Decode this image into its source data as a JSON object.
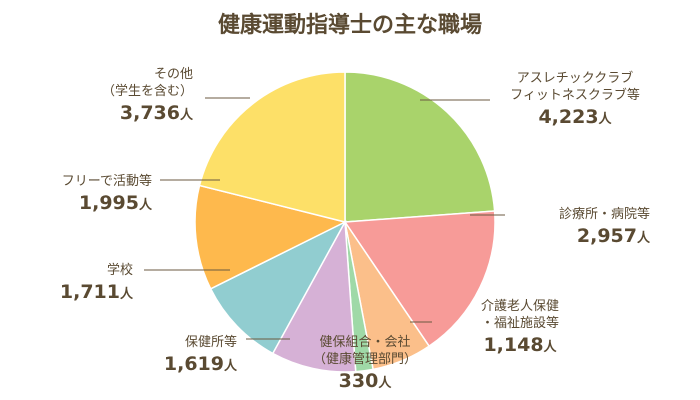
{
  "chart_data": {
    "type": "pie",
    "title": "健康運動指導士の主な職場",
    "unit": "人",
    "start_angle_deg": 0,
    "direction": "clockwise",
    "slices": [
      {
        "label_lines": [
          "アスレチッククラブ",
          "フィットネスクラブ等"
        ],
        "value": 4223,
        "value_text": "4,223",
        "color": "#a9d36b"
      },
      {
        "label_lines": [
          "診療所・病院等"
        ],
        "value": 2957,
        "value_text": "2,957",
        "color": "#f79b98"
      },
      {
        "label_lines": [
          "介護老人保健",
          "・福祉施設等"
        ],
        "value": 1148,
        "value_text": "1,148",
        "color": "#fbbf8a"
      },
      {
        "label_lines": [
          "健保組合・会社",
          "（健康管理部門）"
        ],
        "value": 330,
        "value_text": "330",
        "color": "#9fd9a7"
      },
      {
        "label_lines": [
          "保健所等"
        ],
        "value": 1619,
        "value_text": "1,619",
        "color": "#d6b1d6"
      },
      {
        "label_lines": [
          "学校"
        ],
        "value": 1711,
        "value_text": "1,711",
        "color": "#91cdd0"
      },
      {
        "label_lines": [
          "フリーで活動等"
        ],
        "value": 1995,
        "value_text": "1,995",
        "color": "#feb94d"
      },
      {
        "label_lines": [
          "その他",
          "（学生を含む）"
        ],
        "value": 3736,
        "value_text": "3,736",
        "color": "#fde068"
      }
    ]
  }
}
